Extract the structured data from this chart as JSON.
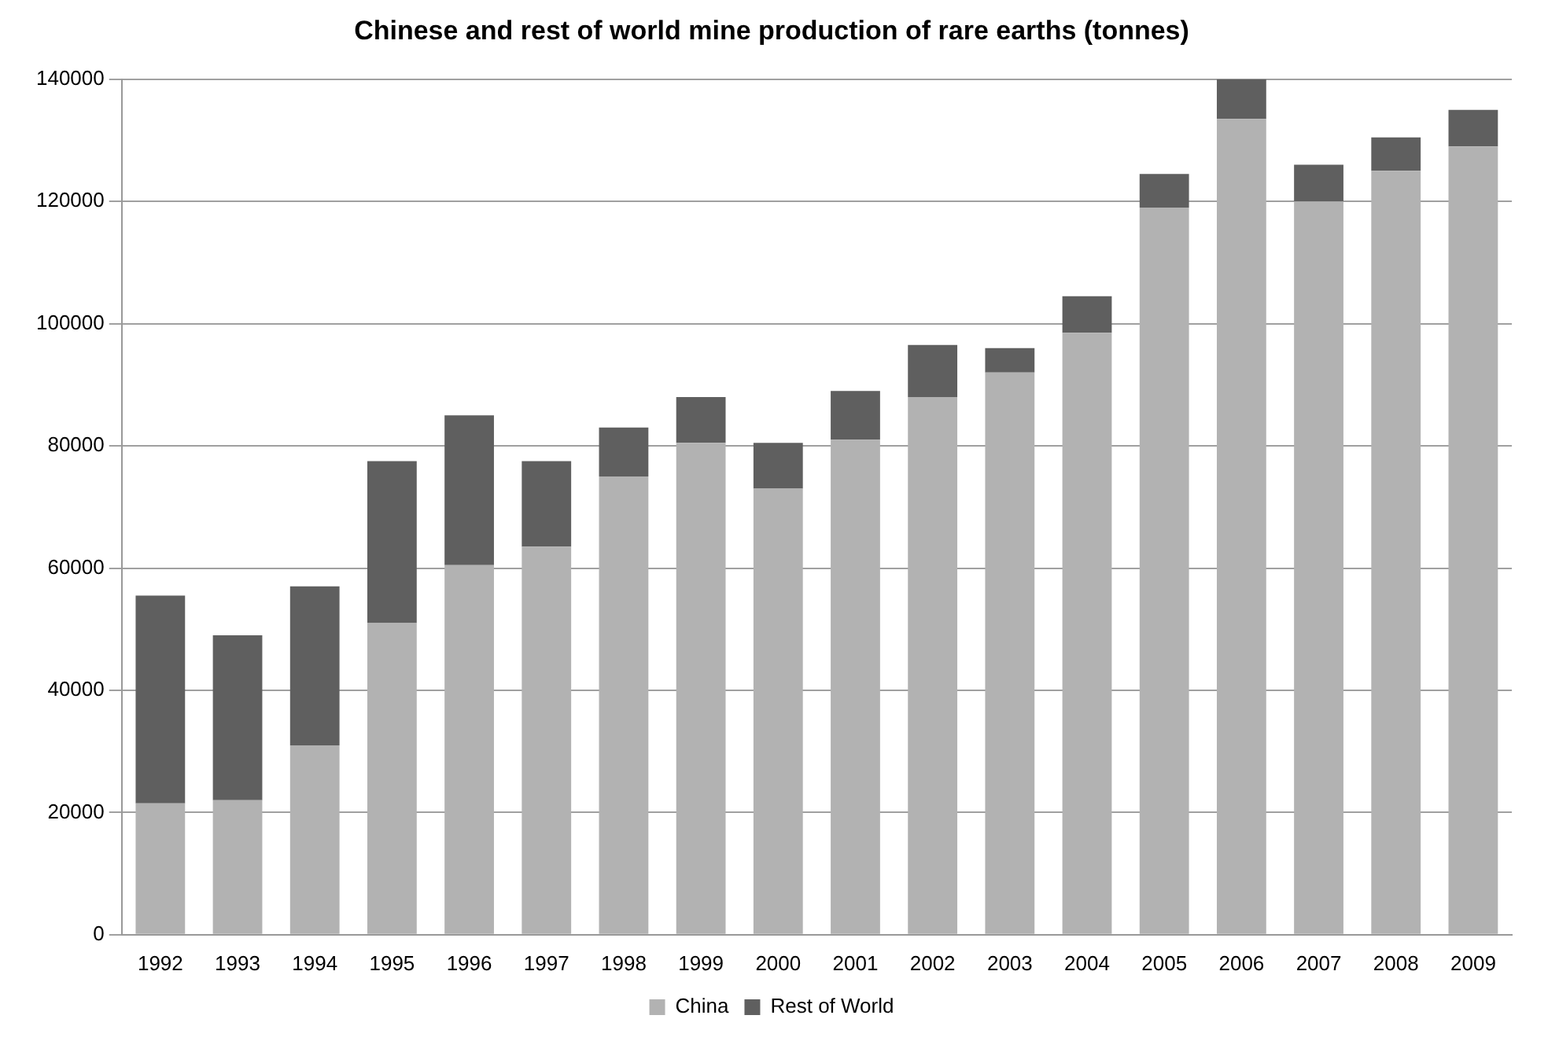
{
  "chart_data": {
    "type": "bar",
    "title": "Chinese and rest of world mine production of rare earths (tonnes)",
    "categories": [
      "1992",
      "1993",
      "1994",
      "1995",
      "1996",
      "1997",
      "1998",
      "1999",
      "2000",
      "2001",
      "2002",
      "2003",
      "2004",
      "2005",
      "2006",
      "2007",
      "2008",
      "2009"
    ],
    "series": [
      {
        "name": "China",
        "color": "#b2b2b2",
        "values": [
          21500,
          22000,
          31000,
          51000,
          60500,
          63500,
          75000,
          80500,
          73000,
          81000,
          88000,
          92000,
          98500,
          119000,
          133500,
          120000,
          125000,
          129000
        ]
      },
      {
        "name": "Rest of World",
        "color": "#5f5f5f",
        "values": [
          34000,
          27000,
          26000,
          26500,
          24500,
          14000,
          8000,
          7500,
          7500,
          8000,
          8500,
          4000,
          6000,
          5500,
          6500,
          6000,
          5500,
          6000
        ]
      }
    ],
    "stacked": true,
    "ylim": [
      0,
      140000
    ],
    "yticks": [
      0,
      20000,
      40000,
      60000,
      80000,
      100000,
      120000,
      140000
    ],
    "grid": "y",
    "legend": "bottom"
  }
}
